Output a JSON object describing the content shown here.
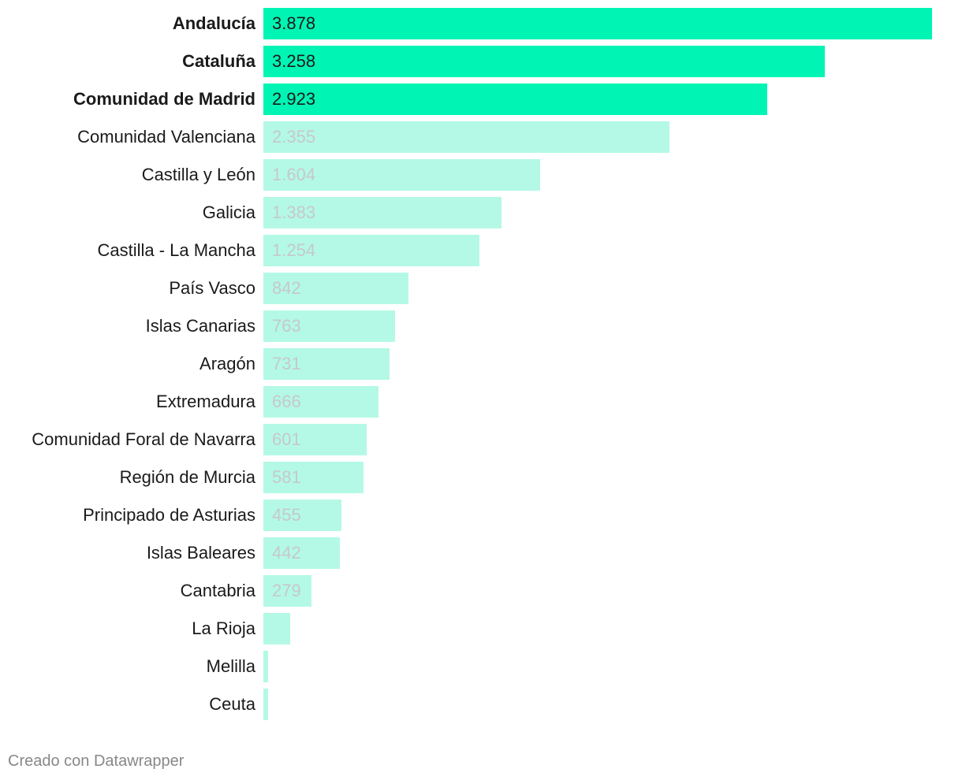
{
  "chart_data": {
    "type": "bar",
    "orientation": "horizontal",
    "categories": [
      "Andalucía",
      "Cataluña",
      "Comunidad de Madrid",
      "Comunidad Valenciana",
      "Castilla y León",
      "Galicia",
      "Castilla - La Mancha",
      "País Vasco",
      "Islas Canarias",
      "Aragón",
      "Extremadura",
      "Comunidad Foral de Navarra",
      "Región de Murcia",
      "Principado de Asturias",
      "Islas Baleares",
      "Cantabria",
      "La Rioja",
      "Melilla",
      "Ceuta"
    ],
    "values": [
      3878,
      3258,
      2923,
      2355,
      1604,
      1383,
      1254,
      842,
      763,
      731,
      666,
      601,
      581,
      455,
      442,
      279,
      155,
      25,
      25
    ],
    "value_labels": [
      "3.878",
      "3.258",
      "2.923",
      "2.355",
      "1.604",
      "1.383",
      "1.254",
      "842",
      "763",
      "731",
      "666",
      "601",
      "581",
      "455",
      "442",
      "279",
      "",
      "",
      ""
    ],
    "highlighted": [
      true,
      true,
      true,
      false,
      false,
      false,
      false,
      false,
      false,
      false,
      false,
      false,
      false,
      false,
      false,
      false,
      false,
      false,
      false
    ],
    "xlim": [
      0,
      3878
    ],
    "grid": false,
    "title": "",
    "xlabel": "",
    "ylabel": "",
    "colors": {
      "highlight": "#00f5b4",
      "normal": "#b3f9e6",
      "highlight_label": "#1a1a1a",
      "normal_label": "#c8c8c8"
    }
  },
  "footer": "Creado con Datawrapper"
}
